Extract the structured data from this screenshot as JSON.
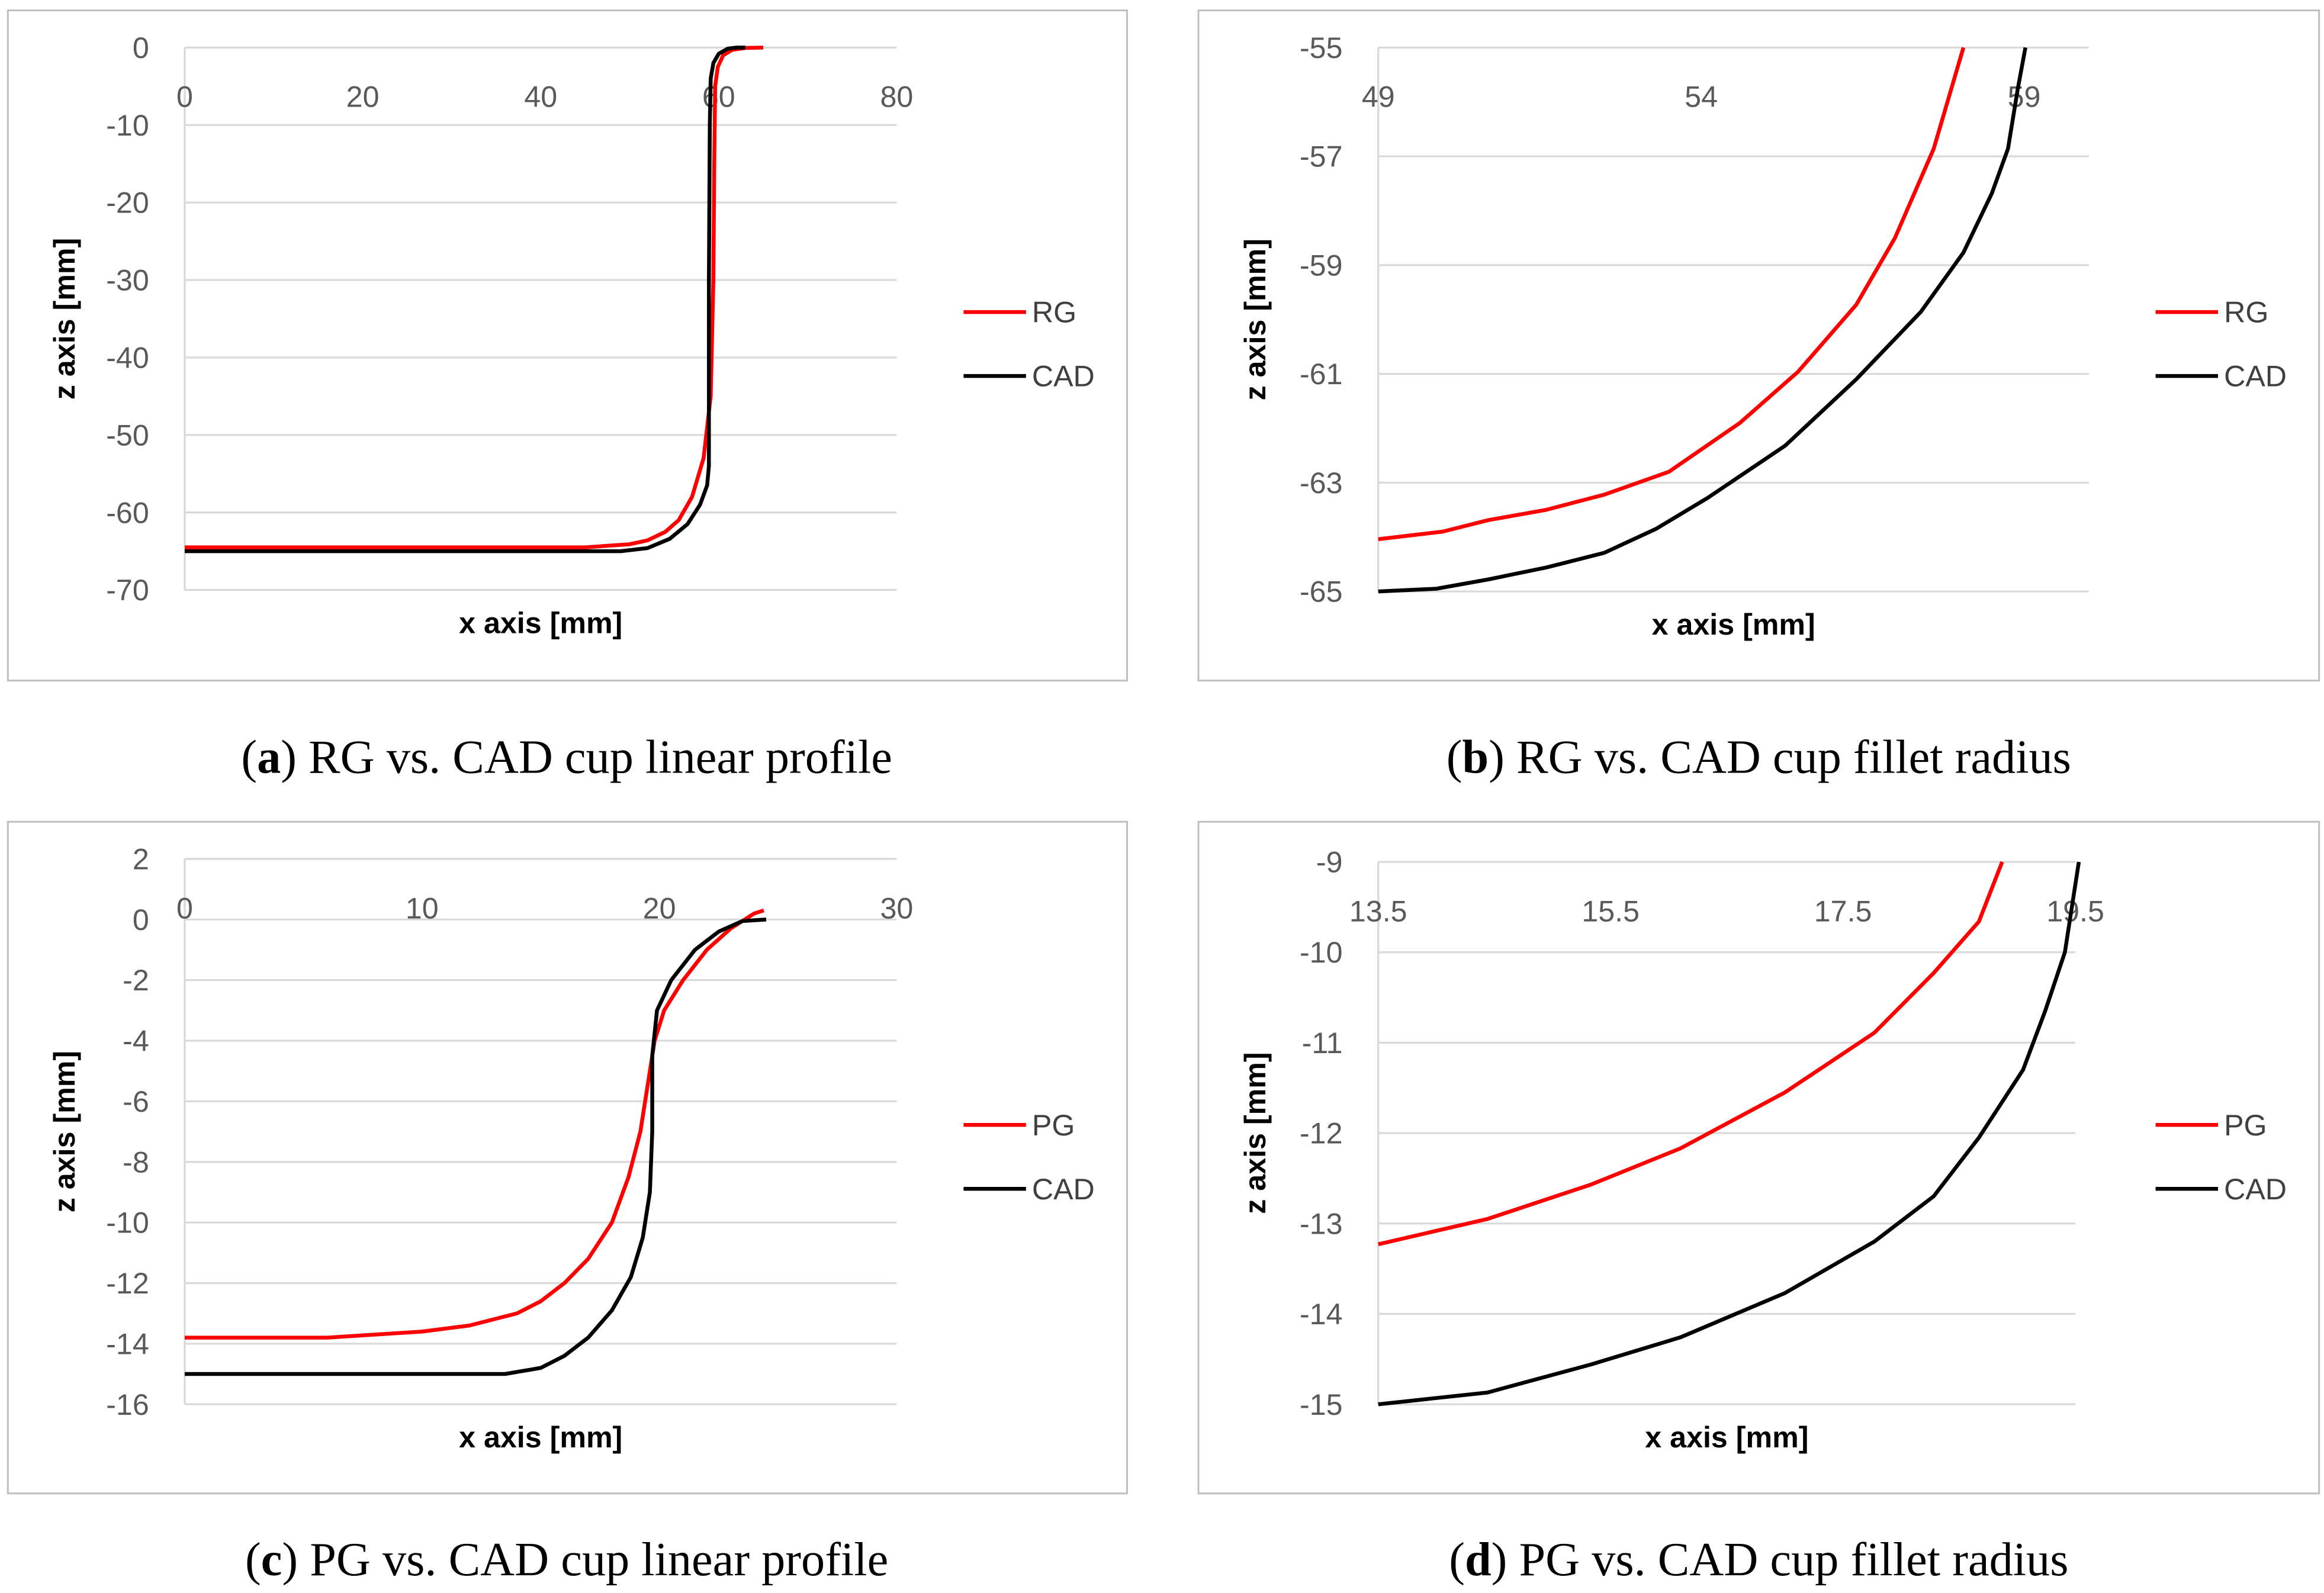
{
  "chart_data": [
    {
      "id": "a",
      "type": "line",
      "caption_letter": "a",
      "caption_text": "RG vs. CAD cup linear profile",
      "xlabel": "x axis [mm]",
      "ylabel": "z axis [mm]",
      "xlim": [
        0,
        80
      ],
      "ylim": [
        -70,
        0
      ],
      "xticks": [
        0,
        20,
        40,
        60,
        80
      ],
      "yticks": [
        0,
        -10,
        -20,
        -30,
        -40,
        -50,
        -60,
        -70
      ],
      "grid": true,
      "legend": "right",
      "series": [
        {
          "name": "RG",
          "color": "#ff0000",
          "points": [
            [
              0,
              -64.5
            ],
            [
              45,
              -64.5
            ],
            [
              50,
              -64.1
            ],
            [
              52,
              -63.6
            ],
            [
              54,
              -62.5
            ],
            [
              55.5,
              -61
            ],
            [
              57,
              -58
            ],
            [
              58.3,
              -53
            ],
            [
              59.1,
              -45
            ],
            [
              59.4,
              -30
            ],
            [
              59.5,
              -15
            ],
            [
              59.6,
              -5
            ],
            [
              59.9,
              -2.5
            ],
            [
              60.5,
              -1
            ],
            [
              61.5,
              -0.3
            ],
            [
              63,
              -0.05
            ],
            [
              65,
              0
            ]
          ]
        },
        {
          "name": "CAD",
          "color": "#000000",
          "points": [
            [
              0,
              -65
            ],
            [
              49,
              -65
            ],
            [
              52,
              -64.6
            ],
            [
              54.5,
              -63.4
            ],
            [
              56.5,
              -61.5
            ],
            [
              57.9,
              -59
            ],
            [
              58.7,
              -56.5
            ],
            [
              58.9,
              -54
            ],
            [
              58.9,
              -30
            ],
            [
              59,
              -10
            ],
            [
              59.1,
              -4
            ],
            [
              59.4,
              -2
            ],
            [
              60,
              -0.8
            ],
            [
              61,
              -0.15
            ],
            [
              62,
              0
            ],
            [
              63,
              0
            ]
          ]
        }
      ]
    },
    {
      "id": "b",
      "type": "line",
      "caption_letter": "b",
      "caption_text": "RG vs. CAD cup fillet radius",
      "xlabel": "x axis [mm]",
      "ylabel": "z axis [mm]",
      "xlim": [
        49,
        60
      ],
      "ylim": [
        -65,
        -55
      ],
      "xticks": [
        49,
        54,
        59
      ],
      "yticks": [
        -55,
        -57,
        -59,
        -61,
        -63,
        -65
      ],
      "grid": true,
      "legend": "right",
      "series": [
        {
          "name": "RG",
          "color": "#ff0000",
          "points": [
            [
              49,
              -64.04
            ],
            [
              50,
              -63.9
            ],
            [
              50.7,
              -63.69
            ],
            [
              51.6,
              -63.5
            ],
            [
              52.5,
              -63.22
            ],
            [
              53.5,
              -62.8
            ],
            [
              54.6,
              -61.9
            ],
            [
              55.5,
              -60.96
            ],
            [
              56.4,
              -59.73
            ],
            [
              57,
              -58.5
            ],
            [
              57.6,
              -56.86
            ],
            [
              58.06,
              -55
            ]
          ]
        },
        {
          "name": "CAD",
          "color": "#000000",
          "points": [
            [
              49,
              -65
            ],
            [
              49.9,
              -64.95
            ],
            [
              50.7,
              -64.78
            ],
            [
              51.6,
              -64.56
            ],
            [
              52.5,
              -64.29
            ],
            [
              53.3,
              -63.85
            ],
            [
              54.1,
              -63.28
            ],
            [
              55.3,
              -62.32
            ],
            [
              56.4,
              -61.1
            ],
            [
              57.4,
              -59.86
            ],
            [
              58.06,
              -58.77
            ],
            [
              58.5,
              -57.68
            ],
            [
              58.75,
              -56.86
            ],
            [
              58.9,
              -55.77
            ],
            [
              59.02,
              -55
            ]
          ]
        }
      ]
    },
    {
      "id": "c",
      "type": "line",
      "caption_letter": "c",
      "caption_text": "PG vs. CAD cup linear profile",
      "xlabel": "x axis [mm]",
      "ylabel": "z axis [mm]",
      "xlim": [
        0,
        30
      ],
      "ylim": [
        -16,
        2
      ],
      "xticks": [
        0,
        10,
        20,
        30
      ],
      "yticks": [
        2,
        0,
        -2,
        -4,
        -6,
        -8,
        -10,
        -12,
        -14,
        -16
      ],
      "grid": true,
      "legend": "right",
      "series": [
        {
          "name": "PG",
          "color": "#ff0000",
          "points": [
            [
              0,
              -13.8
            ],
            [
              6,
              -13.8
            ],
            [
              8,
              -13.7
            ],
            [
              10,
              -13.6
            ],
            [
              12,
              -13.4
            ],
            [
              14,
              -13
            ],
            [
              15,
              -12.6
            ],
            [
              16,
              -12
            ],
            [
              17,
              -11.2
            ],
            [
              18,
              -10
            ],
            [
              18.7,
              -8.5
            ],
            [
              19.2,
              -7
            ],
            [
              19.5,
              -5.5
            ],
            [
              19.8,
              -4
            ],
            [
              20.2,
              -3
            ],
            [
              21,
              -2
            ],
            [
              22,
              -1
            ],
            [
              23,
              -0.3
            ],
            [
              24,
              0.2
            ],
            [
              24.4,
              0.3
            ]
          ]
        },
        {
          "name": "CAD",
          "color": "#000000",
          "points": [
            [
              0,
              -15
            ],
            [
              13.5,
              -15
            ],
            [
              15,
              -14.8
            ],
            [
              16,
              -14.4
            ],
            [
              17,
              -13.8
            ],
            [
              18,
              -12.9
            ],
            [
              18.8,
              -11.8
            ],
            [
              19.3,
              -10.5
            ],
            [
              19.6,
              -9
            ],
            [
              19.7,
              -7
            ],
            [
              19.7,
              -4.5
            ],
            [
              19.9,
              -3
            ],
            [
              20.5,
              -2
            ],
            [
              21.5,
              -1
            ],
            [
              22.5,
              -0.4
            ],
            [
              23.5,
              -0.05
            ],
            [
              24.5,
              0
            ]
          ]
        }
      ]
    },
    {
      "id": "d",
      "type": "line",
      "caption_letter": "d",
      "caption_text": "PG vs. CAD cup fillet radius",
      "xlabel": "x axis [mm]",
      "ylabel": "z axis [mm]",
      "xlim": [
        13.5,
        19.5
      ],
      "ylim": [
        -15,
        -9
      ],
      "xticks": [
        13.5,
        15.5,
        17.5,
        19.5
      ],
      "yticks": [
        -9,
        -10,
        -11,
        -12,
        -13,
        -14,
        -15
      ],
      "grid": true,
      "legend": "right",
      "series": [
        {
          "name": "PG",
          "color": "#ff0000",
          "points": [
            [
              13.5,
              -13.23
            ],
            [
              14.44,
              -12.95
            ],
            [
              15.33,
              -12.57
            ],
            [
              16.1,
              -12.17
            ],
            [
              17,
              -11.55
            ],
            [
              17.77,
              -10.89
            ],
            [
              18.28,
              -10.23
            ],
            [
              18.67,
              -9.66
            ],
            [
              18.87,
              -9
            ]
          ]
        },
        {
          "name": "CAD",
          "color": "#000000",
          "points": [
            [
              13.5,
              -15
            ],
            [
              14.44,
              -14.87
            ],
            [
              15.33,
              -14.56
            ],
            [
              16.1,
              -14.26
            ],
            [
              17,
              -13.77
            ],
            [
              17.77,
              -13.2
            ],
            [
              18.28,
              -12.7
            ],
            [
              18.67,
              -12.05
            ],
            [
              19.05,
              -11.3
            ],
            [
              19.24,
              -10.65
            ],
            [
              19.41,
              -10
            ],
            [
              19.53,
              -9
            ]
          ]
        }
      ]
    }
  ]
}
